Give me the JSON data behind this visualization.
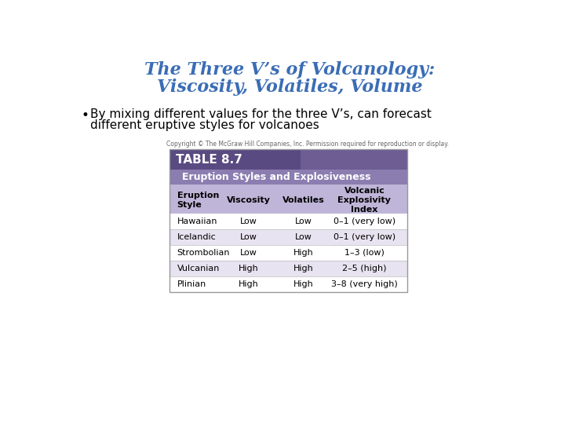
{
  "title_line1": "The Three V’s of Volcanology:",
  "title_line2": "Viscosity, Volatiles, Volume",
  "title_color": "#3a6db5",
  "bullet_text_line1": "By mixing different values for the three V’s, can forecast",
  "bullet_text_line2": "different eruptive styles for volcanoes",
  "copyright_text": "Copyright © The McGraw Hill Companies, Inc. Permission required for reproduction or display.",
  "table_title": "TABLE 8.7",
  "table_subtitle": "Eruption Styles and Explosiveness",
  "col_headers": [
    "Eruption\nStyle",
    "Viscosity",
    "Volatiles",
    "Volcanic\nExplosivity\nIndex"
  ],
  "rows": [
    [
      "Hawaiian",
      "Low",
      "Low",
      "0–1 (very low)"
    ],
    [
      "Icelandic",
      "Low",
      "Low",
      "0–1 (very low)"
    ],
    [
      "Strombolian",
      "Low",
      "High",
      "1–3 (low)"
    ],
    [
      "Vulcanian",
      "High",
      "High",
      "2–5 (high)"
    ],
    [
      "Plinian",
      "High",
      "High",
      "3–8 (very high)"
    ]
  ],
  "bg_color": "#ffffff",
  "table_header_bg": "#5a4a82",
  "table_subtitle_bg": "#8b7db0",
  "table_colheader_bg": "#bfb5d8",
  "table_row_bg1": "#ffffff",
  "table_row_bg2": "#e8e3f0",
  "table_border_color": "#999999",
  "title_fontsize": 16,
  "bullet_fontsize": 11,
  "copyright_fontsize": 5.5,
  "table_title_fontsize": 11,
  "table_subtitle_fontsize": 9,
  "col_header_fontsize": 8,
  "row_fontsize": 8
}
